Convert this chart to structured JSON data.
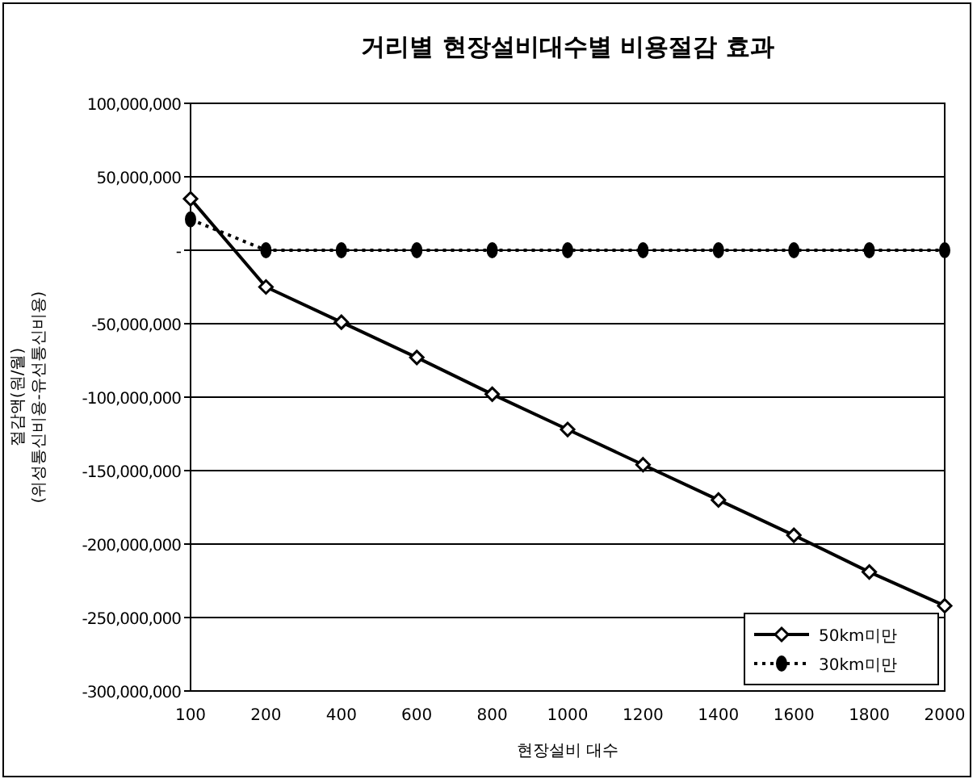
{
  "chart_data": {
    "type": "line",
    "title": "거리별 현장설비대수별 비용절감 효과",
    "xlabel": "현장설비 대수",
    "ylabel": "절감액(원/월)\n(위성통신비용-유선통신비용)",
    "categories": [
      "100",
      "200",
      "400",
      "600",
      "800",
      "1000",
      "1200",
      "1400",
      "1600",
      "1800",
      "2000"
    ],
    "series": [
      {
        "name": "50km미만",
        "color": "#000000",
        "marker": "diamond",
        "line_style": "solid",
        "values": [
          35000000,
          -25000000,
          -49000000,
          -73000000,
          -98000000,
          -122000000,
          -146000000,
          -170000000,
          -194000000,
          -219000000,
          -242000000
        ]
      },
      {
        "name": "30km미만",
        "color": "#000000",
        "marker": "circle",
        "line_style": "dotted",
        "values": [
          21000000,
          0,
          0,
          0,
          0,
          0,
          0,
          0,
          0,
          0,
          0
        ]
      }
    ],
    "ylim": [
      -300000000,
      100000000
    ],
    "yticks": [
      {
        "value": -300000000,
        "label": "-300,000,000"
      },
      {
        "value": -250000000,
        "label": "-250,000,000"
      },
      {
        "value": -200000000,
        "label": "-200,000,000"
      },
      {
        "value": -150000000,
        "label": "-150,000,000"
      },
      {
        "value": -100000000,
        "label": "-100,000,000"
      },
      {
        "value": -50000000,
        "label": "-50,000,000"
      },
      {
        "value": 0,
        "label": "-"
      },
      {
        "value": 50000000,
        "label": "50,000,000"
      },
      {
        "value": 100000000,
        "label": "100,000,000"
      }
    ],
    "grid": "y",
    "legend": "bottom right"
  }
}
